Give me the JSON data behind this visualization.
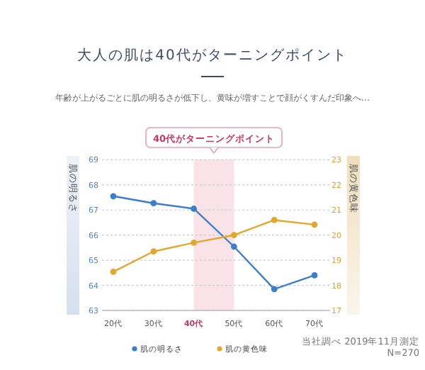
{
  "chart_data": {
    "type": "line",
    "title": "大人の肌は40代がターニングポイント",
    "subtitle": "年齢が上がるごとに肌の明るさが低下し、黄味が増すことで顔がくすんだ印象へ…",
    "categories": [
      "20代",
      "30代",
      "40代",
      "50代",
      "60代",
      "70代"
    ],
    "series": [
      {
        "name": "肌の明るさ",
        "color": "#3b7fc8",
        "values": [
          67.55,
          67.27,
          67.05,
          65.54,
          63.85,
          64.4
        ]
      },
      {
        "name": "肌の黄色味",
        "color": "#e2a72e",
        "axis": "y2",
        "values": [
          18.54,
          19.35,
          19.7,
          20.0,
          20.6,
          20.42
        ]
      }
    ],
    "ylabel": "肌の明るさ",
    "y2label": "肌の黄色味",
    "ylim": [
      63,
      69
    ],
    "yticks": [
      63,
      64,
      65,
      66,
      67,
      68,
      69
    ],
    "y2lim": [
      17,
      23
    ],
    "y2ticks": [
      17,
      18,
      19,
      20,
      21,
      22,
      23
    ],
    "bands": [
      {
        "axis": "x",
        "from": "40代",
        "to": "50代",
        "label": "40代がターニングポイント",
        "color": "#f9e3e8"
      }
    ],
    "annotations": [
      "当社調べ 2019年11月測定",
      "N=270"
    ],
    "grid": "y",
    "legend": "bottom",
    "marker": "circle",
    "line_style": "solid"
  }
}
